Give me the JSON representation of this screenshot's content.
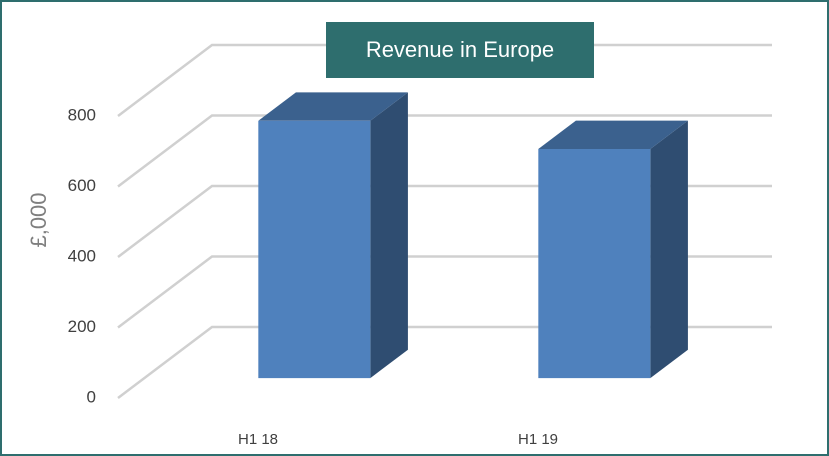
{
  "chart_data": {
    "type": "bar3d",
    "title": "Revenue in Europe",
    "y_label": "£,000",
    "categories": [
      "H1 18",
      "H1 19"
    ],
    "values": [
      730,
      650
    ],
    "color": "#4f81bd",
    "ylim": [
      0,
      800
    ],
    "yticks": [
      0,
      200,
      400,
      600,
      800
    ],
    "grid": true
  }
}
